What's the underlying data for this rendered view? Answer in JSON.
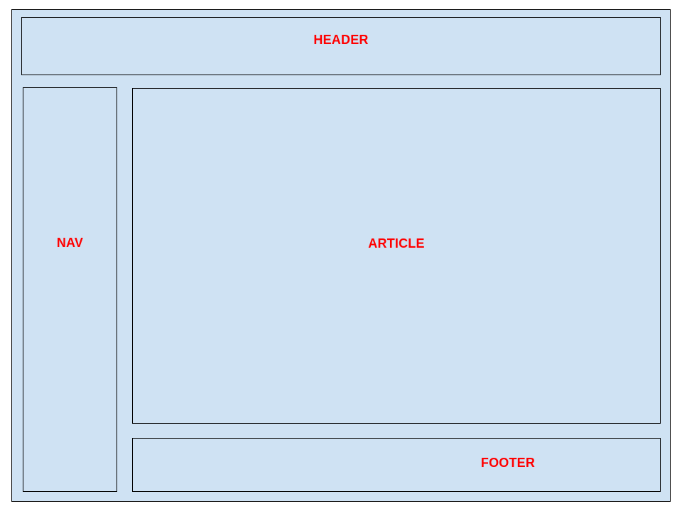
{
  "colors": {
    "box_fill": "#cfe2f3",
    "box_border": "#000000",
    "label_color": "#ff0000"
  },
  "layout_regions": {
    "header": {
      "label": "HEADER"
    },
    "nav": {
      "label": "NAV"
    },
    "article": {
      "label": "ARTICLE"
    },
    "footer": {
      "label": "FOOTER"
    }
  }
}
